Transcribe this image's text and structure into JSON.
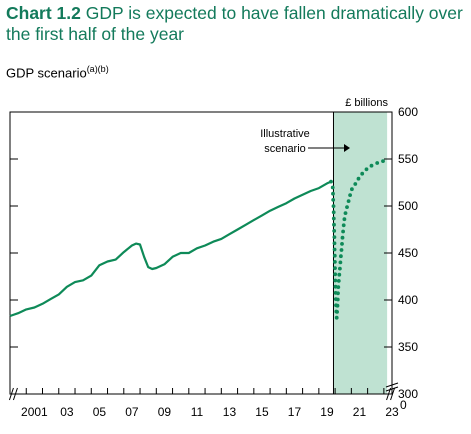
{
  "header": {
    "title_label": "Chart 1.2",
    "title_text": "GDP is expected to have fallen dramatically over the first half of the year",
    "subtitle_text": "GDP scenario",
    "subtitle_notes": "(a)(b)"
  },
  "colors": {
    "title": "#137a5b",
    "line": "#0e8a58",
    "scenario_shade": "#bfe2d2",
    "axis": "#000000"
  },
  "chart_data": {
    "type": "line",
    "y_unit_label": "£ billions",
    "ylim": [
      300,
      600
    ],
    "yticks": [
      "300",
      "350",
      "400",
      "450",
      "500",
      "550",
      "600"
    ],
    "y_break_label": "0",
    "xlim": [
      2000.0,
      2023.5
    ],
    "xticks": [
      {
        "x": 2001,
        "label": "2001"
      },
      {
        "x": 2003,
        "label": "03"
      },
      {
        "x": 2005,
        "label": "05"
      },
      {
        "x": 2007,
        "label": "07"
      },
      {
        "x": 2009,
        "label": "09"
      },
      {
        "x": 2011,
        "label": "11"
      },
      {
        "x": 2013,
        "label": "13"
      },
      {
        "x": 2015,
        "label": "15"
      },
      {
        "x": 2017,
        "label": "17"
      },
      {
        "x": 2019,
        "label": "19"
      },
      {
        "x": 2021,
        "label": "21"
      },
      {
        "x": 2023,
        "label": "23"
      }
    ],
    "grid": false,
    "shaded_region": {
      "x_start": 2019.9,
      "x_end": 2023.2
    },
    "annotation": {
      "text": [
        "Illustrative",
        "scenario"
      ]
    },
    "series": [
      {
        "style": "solid",
        "x": [
          2000.0,
          2000.5,
          2001.0,
          2001.5,
          2002.0,
          2002.5,
          2003.0,
          2003.5,
          2004.0,
          2004.5,
          2005.0,
          2005.5,
          2006.0,
          2006.5,
          2007.0,
          2007.5,
          2007.75,
          2008.0,
          2008.25,
          2008.5,
          2008.75,
          2009.0,
          2009.5,
          2010.0,
          2010.5,
          2011.0,
          2011.5,
          2012.0,
          2012.5,
          2013.0,
          2013.5,
          2014.0,
          2014.5,
          2015.0,
          2015.5,
          2016.0,
          2016.5,
          2017.0,
          2017.5,
          2018.0,
          2018.5,
          2019.0,
          2019.5,
          2019.75
        ],
        "y": [
          383,
          386,
          390,
          392,
          396,
          401,
          406,
          414,
          419,
          421,
          426,
          437,
          441,
          443,
          451,
          458,
          460,
          459,
          446,
          435,
          433,
          434,
          438,
          446,
          450,
          450,
          455,
          458,
          462,
          465,
          470,
          475,
          480,
          485,
          490,
          495,
          499,
          503,
          508,
          512,
          516,
          519,
          524,
          526
        ]
      },
      {
        "style": "dotted",
        "x": [
          2019.75,
          2019.85,
          2019.9,
          2019.95,
          2020.0,
          2020.05,
          2020.1,
          2020.15,
          2020.2,
          2020.3,
          2020.4,
          2020.5,
          2020.6,
          2020.75,
          2020.9,
          2021.0,
          2021.2,
          2021.4,
          2021.6,
          2021.8,
          2022.0,
          2022.25,
          2022.5,
          2022.75,
          2023.0
        ],
        "y": [
          526,
          520,
          500,
          470,
          430,
          395,
          381,
          395,
          415,
          435,
          455,
          475,
          490,
          500,
          510,
          517,
          522,
          528,
          533,
          537,
          540,
          543,
          545,
          547,
          548
        ]
      }
    ]
  }
}
